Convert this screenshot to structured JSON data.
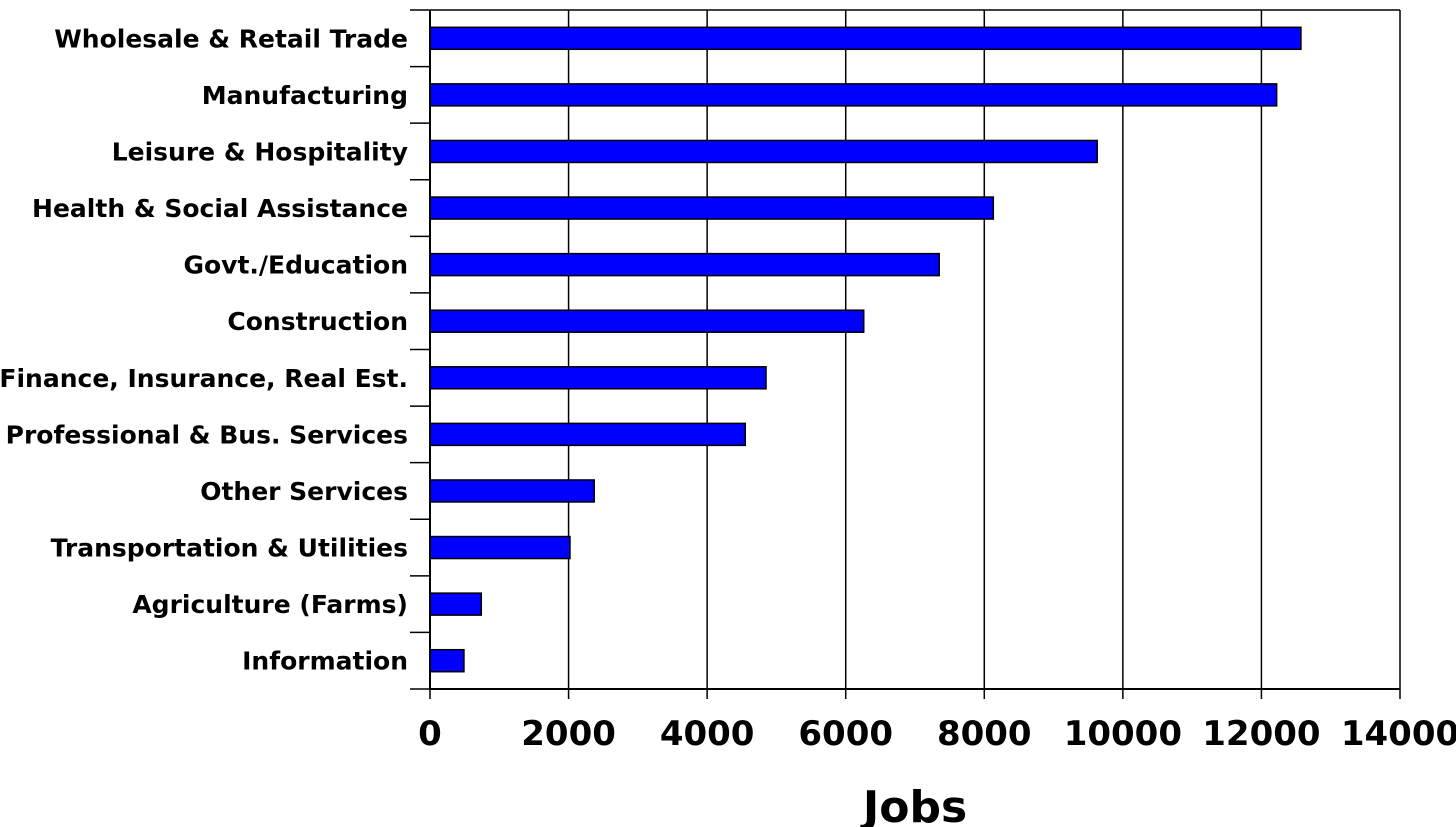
{
  "chart_data": {
    "type": "bar",
    "orientation": "horizontal",
    "categories": [
      "Wholesale & Retail Trade",
      "Manufacturing",
      "Leisure & Hospitality",
      "Health & Social Assistance",
      "Govt./Education",
      "Construction",
      "Finance, Insurance, Real Est.",
      "Professional & Bus. Services",
      "Other Services",
      "Transportation & Utilities",
      "Agriculture (Farms)",
      "Information"
    ],
    "values": [
      12570,
      12220,
      9630,
      8130,
      7350,
      6260,
      4850,
      4550,
      2370,
      2020,
      740,
      490
    ],
    "xlabel": "Jobs",
    "ylabel": "",
    "xlim": [
      0,
      14000
    ],
    "xticks": [
      "0",
      "2000",
      "4000",
      "6000",
      "8000",
      "10000",
      "12000",
      "14000"
    ],
    "grid": "vertical",
    "legend": "none",
    "colors": {
      "bar_fill": "#0000ff",
      "bar_stroke": "#000000",
      "grid": "#000000",
      "background": "#ffffff"
    }
  }
}
